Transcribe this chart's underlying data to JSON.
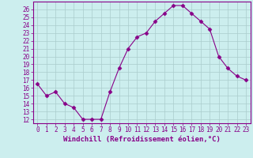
{
  "x": [
    0,
    1,
    2,
    3,
    4,
    5,
    6,
    7,
    8,
    9,
    10,
    11,
    12,
    13,
    14,
    15,
    16,
    17,
    18,
    19,
    20,
    21,
    22,
    23
  ],
  "y": [
    16.5,
    15.0,
    15.5,
    14.0,
    13.5,
    12.0,
    12.0,
    12.0,
    15.5,
    18.5,
    21.0,
    22.5,
    23.0,
    24.5,
    25.5,
    26.5,
    26.5,
    25.5,
    24.5,
    23.5,
    20.0,
    18.5,
    17.5,
    17.0
  ],
  "xlabel": "Windchill (Refroidissement éolien,°C)",
  "ylim_min": 11.5,
  "ylim_max": 27.0,
  "xlim_min": -0.5,
  "xlim_max": 23.5,
  "yticks": [
    12,
    13,
    14,
    15,
    16,
    17,
    18,
    19,
    20,
    21,
    22,
    23,
    24,
    25,
    26
  ],
  "xticks": [
    0,
    1,
    2,
    3,
    4,
    5,
    6,
    7,
    8,
    9,
    10,
    11,
    12,
    13,
    14,
    15,
    16,
    17,
    18,
    19,
    20,
    21,
    22,
    23
  ],
  "line_color": "#880088",
  "marker": "D",
  "marker_size": 2.5,
  "bg_color": "#cceeee",
  "grid_color": "#aacccc",
  "tick_label_fontsize": 5.5,
  "xlabel_fontsize": 6.5
}
